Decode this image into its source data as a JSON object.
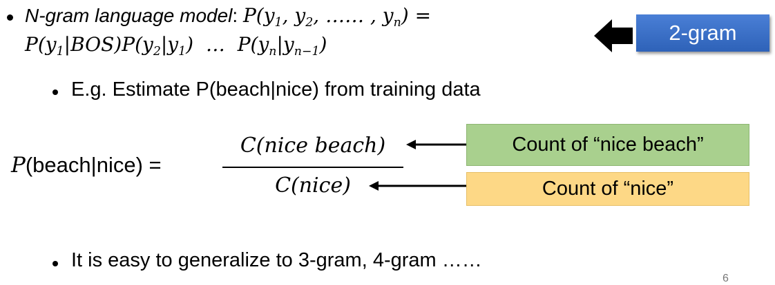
{
  "header": {
    "label": "N-gram language model",
    "separator": ":",
    "formula_line_1": [
      "P(y",
      "1",
      ", y",
      "2",
      ", …… , y",
      "n",
      ") ="
    ],
    "formula_line_2": [
      "P(y",
      "1",
      "|BOS)P(y",
      "2",
      "|y",
      "1",
      ")  …  P(y",
      "n",
      "|y",
      "n−1",
      ")"
    ],
    "tag": "2-gram"
  },
  "example": {
    "text": "E.g. Estimate P(beach|nice) from training data",
    "lhs_symbol": "P",
    "lhs_rest": "(beach|nice) =",
    "numerator": "C(nice beach)",
    "denominator": "C(nice)",
    "numerator_note": "Count of “nice beach”",
    "denominator_note": "Count of “nice”"
  },
  "footer": {
    "text": "It is easy to generalize to 3-gram, 4-gram ……",
    "page_number": "6"
  }
}
